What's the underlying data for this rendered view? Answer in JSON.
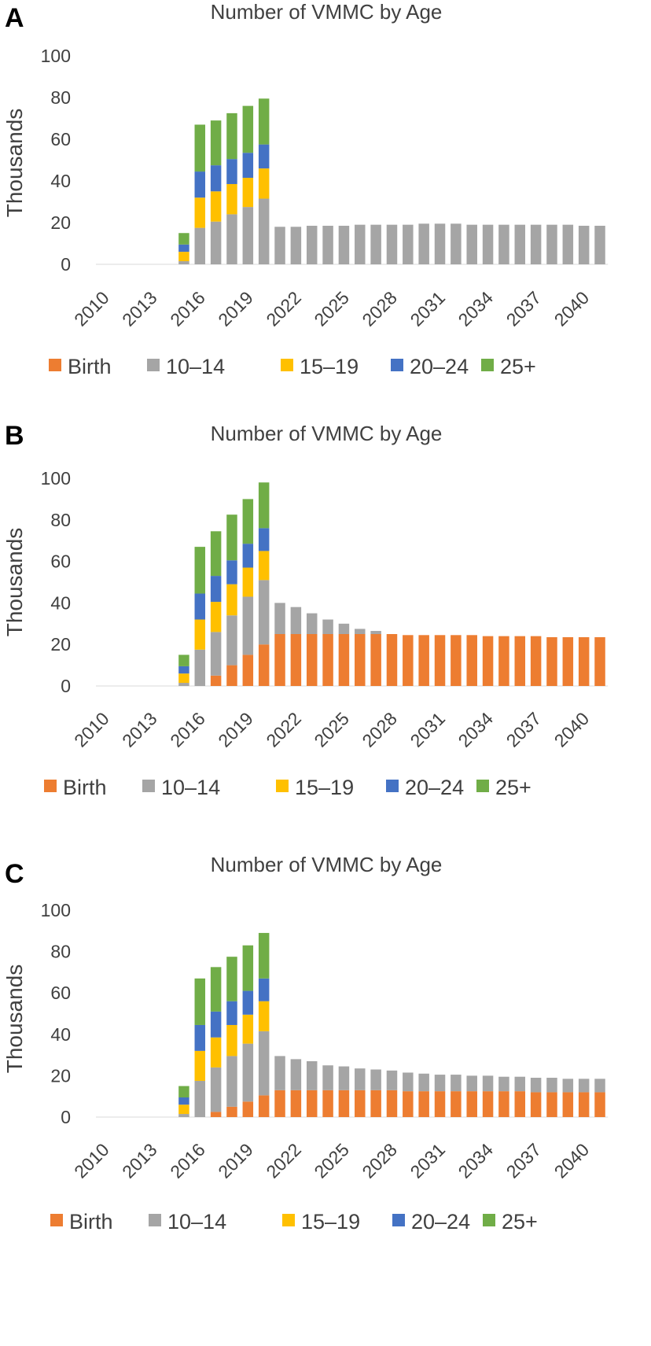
{
  "chart_data": [
    {
      "panel": "A",
      "type": "bar",
      "stacked": true,
      "title": "Number of VMMC by Age",
      "xlabel": "",
      "ylabel": "Thousands",
      "ylim": [
        0,
        100
      ],
      "yticks": [
        0,
        20,
        40,
        60,
        80,
        100
      ],
      "grid": false,
      "legend": "bottom",
      "categories": [
        "2010",
        "2011",
        "2012",
        "2013",
        "2014",
        "2015",
        "2016",
        "2017",
        "2018",
        "2019",
        "2020",
        "2021",
        "2022",
        "2023",
        "2024",
        "2025",
        "2026",
        "2027",
        "2028",
        "2029",
        "2030",
        "2031",
        "2032",
        "2033",
        "2034",
        "2035",
        "2036",
        "2037",
        "2038",
        "2039",
        "2040",
        "2041"
      ],
      "xtick_labels": [
        "2010",
        "2013",
        "2016",
        "2019",
        "2022",
        "2025",
        "2028",
        "2031",
        "2034",
        "2037",
        "2040"
      ],
      "series": [
        {
          "name": "Birth",
          "color": "#ED7D31",
          "values": [
            0,
            0,
            0,
            0,
            0,
            0,
            0,
            0,
            0,
            0,
            0,
            0,
            0,
            0,
            0,
            0,
            0,
            0,
            0,
            0,
            0,
            0,
            0,
            0,
            0,
            0,
            0,
            0,
            0,
            0,
            0,
            0
          ]
        },
        {
          "name": "10–14",
          "color": "#A5A5A5",
          "values": [
            0,
            0,
            0,
            0,
            0,
            1.5,
            17.5,
            20.5,
            24,
            27.5,
            31.5,
            18,
            18,
            18.5,
            18.5,
            18.5,
            19,
            19,
            19,
            19,
            19.5,
            19.5,
            19.5,
            19,
            19,
            19,
            19,
            19,
            19,
            19,
            18.5,
            18.5
          ]
        },
        {
          "name": "15–19",
          "color": "#FFC000",
          "values": [
            0,
            0,
            0,
            0,
            0,
            4.5,
            14.5,
            14.5,
            14.5,
            14,
            14.5,
            0,
            0,
            0,
            0,
            0,
            0,
            0,
            0,
            0,
            0,
            0,
            0,
            0,
            0,
            0,
            0,
            0,
            0,
            0,
            0,
            0
          ]
        },
        {
          "name": "20–24",
          "color": "#4472C4",
          "values": [
            0,
            0,
            0,
            0,
            0,
            3.5,
            12.5,
            12.5,
            12,
            12,
            11.5,
            0,
            0,
            0,
            0,
            0,
            0,
            0,
            0,
            0,
            0,
            0,
            0,
            0,
            0,
            0,
            0,
            0,
            0,
            0,
            0,
            0
          ]
        },
        {
          "name": "25+",
          "color": "#70AD47",
          "values": [
            0,
            0,
            0,
            0,
            0,
            5.5,
            22.5,
            21.5,
            22,
            22.5,
            22,
            0,
            0,
            0,
            0,
            0,
            0,
            0,
            0,
            0,
            0,
            0,
            0,
            0,
            0,
            0,
            0,
            0,
            0,
            0,
            0,
            0
          ]
        }
      ]
    },
    {
      "panel": "B",
      "type": "bar",
      "stacked": true,
      "title": "Number of VMMC by Age",
      "xlabel": "",
      "ylabel": "Thousands",
      "ylim": [
        0,
        100
      ],
      "yticks": [
        0,
        20,
        40,
        60,
        80,
        100
      ],
      "grid": false,
      "legend": "bottom",
      "categories": [
        "2010",
        "2011",
        "2012",
        "2013",
        "2014",
        "2015",
        "2016",
        "2017",
        "2018",
        "2019",
        "2020",
        "2021",
        "2022",
        "2023",
        "2024",
        "2025",
        "2026",
        "2027",
        "2028",
        "2029",
        "2030",
        "2031",
        "2032",
        "2033",
        "2034",
        "2035",
        "2036",
        "2037",
        "2038",
        "2039",
        "2040",
        "2041"
      ],
      "xtick_labels": [
        "2010",
        "2013",
        "2016",
        "2019",
        "2022",
        "2025",
        "2028",
        "2031",
        "2034",
        "2037",
        "2040"
      ],
      "series": [
        {
          "name": "Birth",
          "color": "#ED7D31",
          "values": [
            0,
            0,
            0,
            0,
            0,
            0,
            0,
            5,
            10,
            15,
            20,
            25,
            25,
            25,
            25,
            25,
            25,
            25,
            25,
            24.5,
            24.5,
            24.5,
            24.5,
            24.5,
            24,
            24,
            24,
            24,
            23.5,
            23.5,
            23.5,
            23.5
          ]
        },
        {
          "name": "10–14",
          "color": "#A5A5A5",
          "values": [
            0,
            0,
            0,
            0,
            0,
            1.5,
            17.5,
            21,
            24,
            28,
            31,
            15,
            13,
            10,
            7,
            5,
            2.5,
            1.5,
            0,
            0,
            0,
            0,
            0,
            0,
            0,
            0,
            0,
            0,
            0,
            0,
            0,
            0
          ]
        },
        {
          "name": "15–19",
          "color": "#FFC000",
          "values": [
            0,
            0,
            0,
            0,
            0,
            4.5,
            14.5,
            14.5,
            15,
            14,
            14,
            0,
            0,
            0,
            0,
            0,
            0,
            0,
            0,
            0,
            0,
            0,
            0,
            0,
            0,
            0,
            0,
            0,
            0,
            0,
            0,
            0
          ]
        },
        {
          "name": "20–24",
          "color": "#4472C4",
          "values": [
            0,
            0,
            0,
            0,
            0,
            3.5,
            12.5,
            12.5,
            11.5,
            11.5,
            11,
            0,
            0,
            0,
            0,
            0,
            0,
            0,
            0,
            0,
            0,
            0,
            0,
            0,
            0,
            0,
            0,
            0,
            0,
            0,
            0,
            0
          ]
        },
        {
          "name": "25+",
          "color": "#70AD47",
          "values": [
            0,
            0,
            0,
            0,
            0,
            5.5,
            22.5,
            21.5,
            22,
            21.5,
            22,
            0,
            0,
            0,
            0,
            0,
            0,
            0,
            0,
            0,
            0,
            0,
            0,
            0,
            0,
            0,
            0,
            0,
            0,
            0,
            0,
            0
          ]
        }
      ]
    },
    {
      "panel": "C",
      "type": "bar",
      "stacked": true,
      "title": "Number of VMMC by Age",
      "xlabel": "",
      "ylabel": "Thousands",
      "ylim": [
        0,
        100
      ],
      "yticks": [
        0,
        20,
        40,
        60,
        80,
        100
      ],
      "grid": false,
      "legend": "bottom",
      "categories": [
        "2010",
        "2011",
        "2012",
        "2013",
        "2014",
        "2015",
        "2016",
        "2017",
        "2018",
        "2019",
        "2020",
        "2021",
        "2022",
        "2023",
        "2024",
        "2025",
        "2026",
        "2027",
        "2028",
        "2029",
        "2030",
        "2031",
        "2032",
        "2033",
        "2034",
        "2035",
        "2036",
        "2037",
        "2038",
        "2039",
        "2040",
        "2041"
      ],
      "xtick_labels": [
        "2010",
        "2013",
        "2016",
        "2019",
        "2022",
        "2025",
        "2028",
        "2031",
        "2034",
        "2037",
        "2040"
      ],
      "series": [
        {
          "name": "Birth",
          "color": "#ED7D31",
          "values": [
            0,
            0,
            0,
            0,
            0,
            0,
            0,
            2.5,
            5,
            7.5,
            10.5,
            13,
            13,
            13,
            13,
            13,
            13,
            13,
            13,
            12.5,
            12.5,
            12.5,
            12.5,
            12.5,
            12.5,
            12.5,
            12.5,
            12,
            12,
            12,
            12,
            12
          ]
        },
        {
          "name": "10–14",
          "color": "#A5A5A5",
          "values": [
            0,
            0,
            0,
            0,
            0,
            1.5,
            17.5,
            21.5,
            24.5,
            28,
            31,
            16.5,
            15,
            14,
            12,
            11.5,
            10.5,
            10,
            9.5,
            9,
            8.5,
            8,
            8,
            7.5,
            7.5,
            7,
            7,
            7,
            7,
            6.5,
            6.5,
            6.5
          ]
        },
        {
          "name": "15–19",
          "color": "#FFC000",
          "values": [
            0,
            0,
            0,
            0,
            0,
            4.5,
            14.5,
            14.5,
            15,
            14,
            14.5,
            0,
            0,
            0,
            0,
            0,
            0,
            0,
            0,
            0,
            0,
            0,
            0,
            0,
            0,
            0,
            0,
            0,
            0,
            0,
            0,
            0
          ]
        },
        {
          "name": "20–24",
          "color": "#4472C4",
          "values": [
            0,
            0,
            0,
            0,
            0,
            3.5,
            12.5,
            12.5,
            11.5,
            11.5,
            11,
            0,
            0,
            0,
            0,
            0,
            0,
            0,
            0,
            0,
            0,
            0,
            0,
            0,
            0,
            0,
            0,
            0,
            0,
            0,
            0,
            0
          ]
        },
        {
          "name": "25+",
          "color": "#70AD47",
          "values": [
            0,
            0,
            0,
            0,
            0,
            5.5,
            22.5,
            21.5,
            21.5,
            22,
            22,
            0,
            0,
            0,
            0,
            0,
            0,
            0,
            0,
            0,
            0,
            0,
            0,
            0,
            0,
            0,
            0,
            0,
            0,
            0,
            0,
            0
          ]
        }
      ]
    }
  ]
}
